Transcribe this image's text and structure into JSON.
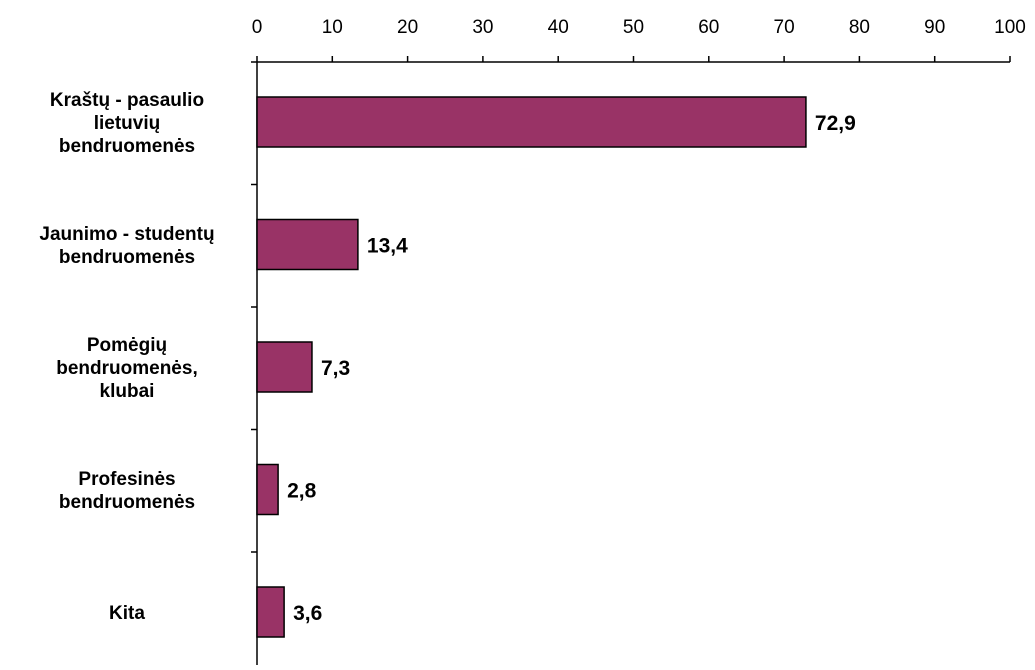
{
  "chart_data": {
    "type": "bar",
    "orientation": "horizontal",
    "categories": [
      [
        "Kraštų - pasaulio",
        "lietuvių",
        "bendruomenės"
      ],
      [
        "Jaunimo - studentų",
        "bendruomenės"
      ],
      [
        "Pomėgių",
        "bendruomenės,",
        "klubai"
      ],
      [
        "Profesinės",
        "bendruomenės"
      ],
      [
        "Kita"
      ]
    ],
    "values": [
      72.9,
      13.4,
      7.3,
      2.8,
      3.6
    ],
    "value_labels": [
      "72,9",
      "13,4",
      "7,3",
      "2,8",
      "3,6"
    ],
    "xlim": [
      0,
      100
    ],
    "x_ticks": [
      0,
      10,
      20,
      30,
      40,
      50,
      60,
      70,
      80,
      90,
      100
    ],
    "x_tick_labels": [
      "0",
      "10",
      "20",
      "30",
      "40",
      "50",
      "60",
      "70",
      "80",
      "90",
      "100"
    ],
    "x_axis_position": "top",
    "grid": false,
    "legend": "none",
    "bar_color": "#993366",
    "bar_edge_color": "#000000",
    "title": "",
    "xlabel": "",
    "ylabel": ""
  }
}
